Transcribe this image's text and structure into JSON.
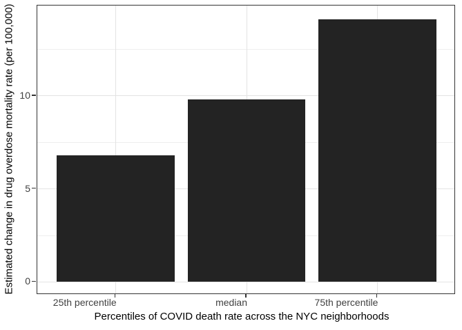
{
  "figure": {
    "kind": "statistical bar chart (ggplot style)",
    "background_color": "#ffffff"
  },
  "chart_data": {
    "type": "bar",
    "title": "",
    "categories": [
      "25th percentile",
      "median",
      "75th percentile"
    ],
    "values": [
      6.8,
      9.8,
      14.1
    ],
    "xlabel": "Percentiles of COVID death rate across the NYC neighborhoods",
    "ylabel": "Estimated change in drug overdose mortality rate (per 100,000)",
    "y_ticks": [
      0,
      5,
      10
    ],
    "y_tick_labels": [
      "0",
      "5",
      "10"
    ],
    "y_minor_ticks": [
      2.5,
      7.5,
      12.5
    ],
    "ylim": [
      -0.69,
      14.86
    ],
    "grid": true,
    "legend_position": "none",
    "colors": {
      "bar_fill": "#232323",
      "panel_border": "#333333",
      "major_grid": "#e3e3e3",
      "minor_grid": "#eeeeee",
      "tick_mark": "#333333",
      "tick_label": "#404040",
      "axis_title": "#000000"
    }
  }
}
